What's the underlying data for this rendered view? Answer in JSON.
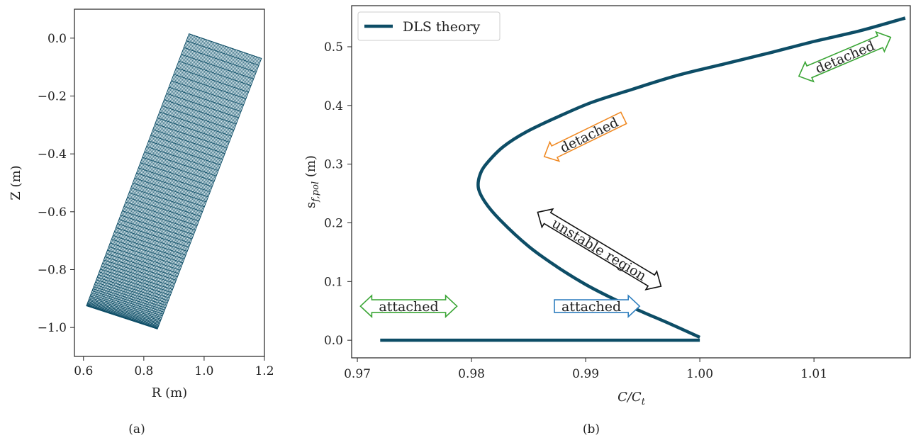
{
  "colors": {
    "primary": "#0d4d66",
    "green": "#3aa535",
    "orange": "#f08a24",
    "blue": "#2f7fbf",
    "black": "#111111"
  },
  "captions": {
    "a": "(a)",
    "b": "(b)"
  },
  "chart_data": [
    {
      "type": "mesh",
      "xlabel": "R (m)",
      "ylabel": "Z (m)",
      "xlim": [
        0.57,
        1.2
      ],
      "ylim": [
        -1.1,
        0.1
      ],
      "xticks": [
        0.6,
        0.8,
        1.0,
        1.2
      ],
      "yticks": [
        0.0,
        -0.2,
        -0.4,
        -0.6,
        -0.8,
        -1.0
      ],
      "xtick_labels": [
        "0.6",
        "0.8",
        "1.0",
        "1.2"
      ],
      "ytick_labels": [
        "0.0",
        "−0.2",
        "−0.4",
        "−0.6",
        "−0.8",
        "−1.0"
      ],
      "corners": {
        "top_left": [
          0.95,
          0.015
        ],
        "top_right": [
          1.19,
          -0.07
        ],
        "bottom_right": [
          0.845,
          -1.005
        ],
        "bottom_left": [
          0.61,
          -0.925
        ]
      },
      "radial_cells": 60,
      "poloidal_rows": 70
    },
    {
      "type": "line",
      "xlabel": "C/C",
      "xlabel_sub": "t",
      "ylabel": "s",
      "ylabel_sub": "f,pol",
      "ylabel_unit": " (m)",
      "xlim": [
        0.9695,
        1.0185
      ],
      "ylim": [
        -0.03,
        0.57
      ],
      "xticks": [
        0.97,
        0.98,
        0.99,
        1.0,
        1.01
      ],
      "yticks": [
        0.0,
        0.1,
        0.2,
        0.3,
        0.4,
        0.5
      ],
      "xtick_labels": [
        "0.97",
        "0.98",
        "0.99",
        "1.00",
        "1.01"
      ],
      "ytick_labels": [
        "0.0",
        "0.1",
        "0.2",
        "0.3",
        "0.4",
        "0.5"
      ],
      "legend": {
        "position": "top-left",
        "entries": [
          "DLS theory"
        ]
      },
      "series": [
        {
          "name": "DLS theory",
          "segments": [
            {
              "x": [
                0.972,
                1.0
              ],
              "y": [
                0.0,
                0.0
              ]
            },
            {
              "x": [
                1.0,
                0.9975,
                0.995,
                0.9925,
                0.99,
                0.9875,
                0.985,
                0.9825,
                0.9812,
                0.9806,
                0.9808,
                0.9815,
                0.9828,
                0.9848,
                0.9875,
                0.9905,
                0.994,
                0.998,
                1.002,
                1.006,
                1.01,
                1.014,
                1.018
              ],
              "y": [
                0.005,
                0.027,
                0.048,
                0.07,
                0.095,
                0.125,
                0.16,
                0.205,
                0.235,
                0.26,
                0.285,
                0.305,
                0.33,
                0.355,
                0.38,
                0.405,
                0.427,
                0.451,
                0.47,
                0.489,
                0.509,
                0.527,
                0.549
              ]
            }
          ]
        }
      ],
      "annotations": [
        {
          "text": "attached",
          "color": "green",
          "direction": "both",
          "cx": 0.9745,
          "cy": 0.058,
          "angle": 0
        },
        {
          "text": "attached",
          "color": "blue",
          "direction": "right",
          "cx": 0.9905,
          "cy": 0.058,
          "angle": 0
        },
        {
          "text": "unstable region",
          "color": "black",
          "direction": "both",
          "cx": 0.9912,
          "cy": 0.155,
          "angle": 31
        },
        {
          "text": "detached",
          "color": "orange",
          "direction": "left",
          "cx": 0.9903,
          "cy": 0.35,
          "angle": -26
        },
        {
          "text": "detached",
          "color": "green",
          "direction": "both",
          "cx": 1.0127,
          "cy": 0.483,
          "angle": -23
        }
      ]
    }
  ]
}
